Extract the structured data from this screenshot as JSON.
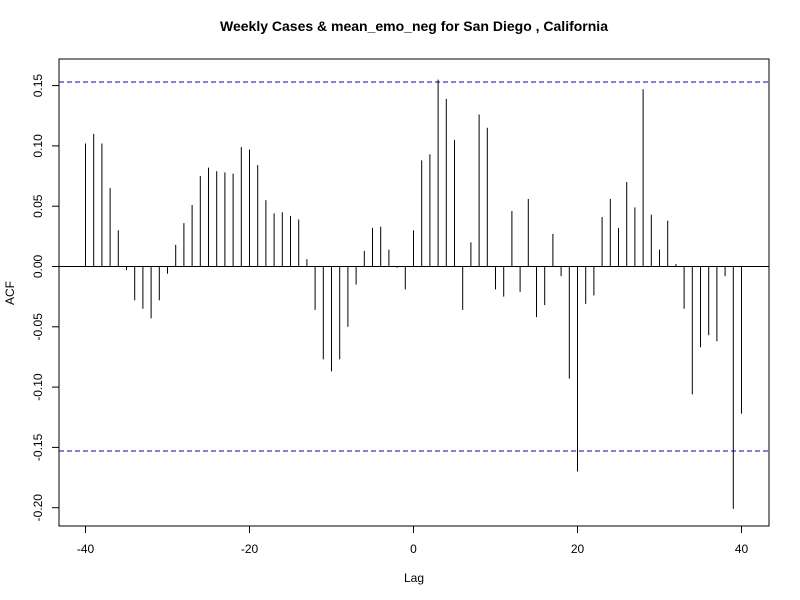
{
  "chart_data": {
    "type": "bar",
    "title": "Weekly Cases & mean_emo_neg for San Diego , California",
    "xlabel": "Lag",
    "ylabel": "ACF",
    "xlim": [
      -40,
      40
    ],
    "ylim": [
      -0.2,
      0.15
    ],
    "xticks": [
      -40,
      -20,
      0,
      20,
      40
    ],
    "xtick_labels": [
      "-40",
      "-20",
      "0",
      "20",
      "40"
    ],
    "yticks": [
      -0.2,
      -0.15,
      -0.1,
      -0.05,
      0,
      0.05,
      0.1,
      0.15
    ],
    "ytick_labels": [
      "-0.20",
      "-0.15",
      "-0.10",
      "-0.05",
      "0.00",
      "0.05",
      "0.10",
      "0.15"
    ],
    "confidence_bound": 0.153,
    "bound_color": "#0000cc",
    "bar_color": "#000000",
    "grid": false,
    "x": [
      -40,
      -39,
      -38,
      -37,
      -36,
      -35,
      -34,
      -33,
      -32,
      -31,
      -30,
      -29,
      -28,
      -27,
      -26,
      -25,
      -24,
      -23,
      -22,
      -21,
      -20,
      -19,
      -18,
      -17,
      -16,
      -15,
      -14,
      -13,
      -12,
      -11,
      -10,
      -9,
      -8,
      -7,
      -6,
      -5,
      -4,
      -3,
      -2,
      -1,
      0,
      1,
      2,
      3,
      4,
      5,
      6,
      7,
      8,
      9,
      10,
      11,
      12,
      13,
      14,
      15,
      16,
      17,
      18,
      19,
      20,
      21,
      22,
      23,
      24,
      25,
      26,
      27,
      28,
      29,
      30,
      31,
      32,
      33,
      34,
      35,
      36,
      37,
      38,
      39,
      40
    ],
    "values": [
      0.102,
      0.11,
      0.102,
      0.065,
      0.03,
      -0.003,
      -0.028,
      -0.035,
      -0.043,
      -0.028,
      -0.006,
      0.018,
      0.036,
      0.051,
      0.075,
      0.082,
      0.079,
      0.078,
      0.077,
      0.099,
      0.097,
      0.084,
      0.055,
      0.044,
      0.045,
      0.042,
      0.039,
      0.006,
      -0.036,
      -0.077,
      -0.087,
      -0.077,
      -0.05,
      -0.015,
      0.013,
      0.032,
      0.033,
      0.014,
      -0.001,
      -0.019,
      0.03,
      0.088,
      0.093,
      0.155,
      0.139,
      0.105,
      -0.036,
      0.02,
      0.126,
      0.115,
      -0.019,
      -0.025,
      0.046,
      -0.021,
      0.056,
      -0.042,
      -0.032,
      0.027,
      -0.008,
      -0.093,
      -0.17,
      -0.031,
      -0.024,
      0.041,
      0.056,
      0.032,
      0.07,
      0.049,
      0.147,
      0.043,
      0.014,
      0.038,
      0.002,
      -0.035,
      -0.106,
      -0.067,
      -0.057,
      -0.062,
      -0.008,
      -0.201,
      -0.122
    ]
  }
}
